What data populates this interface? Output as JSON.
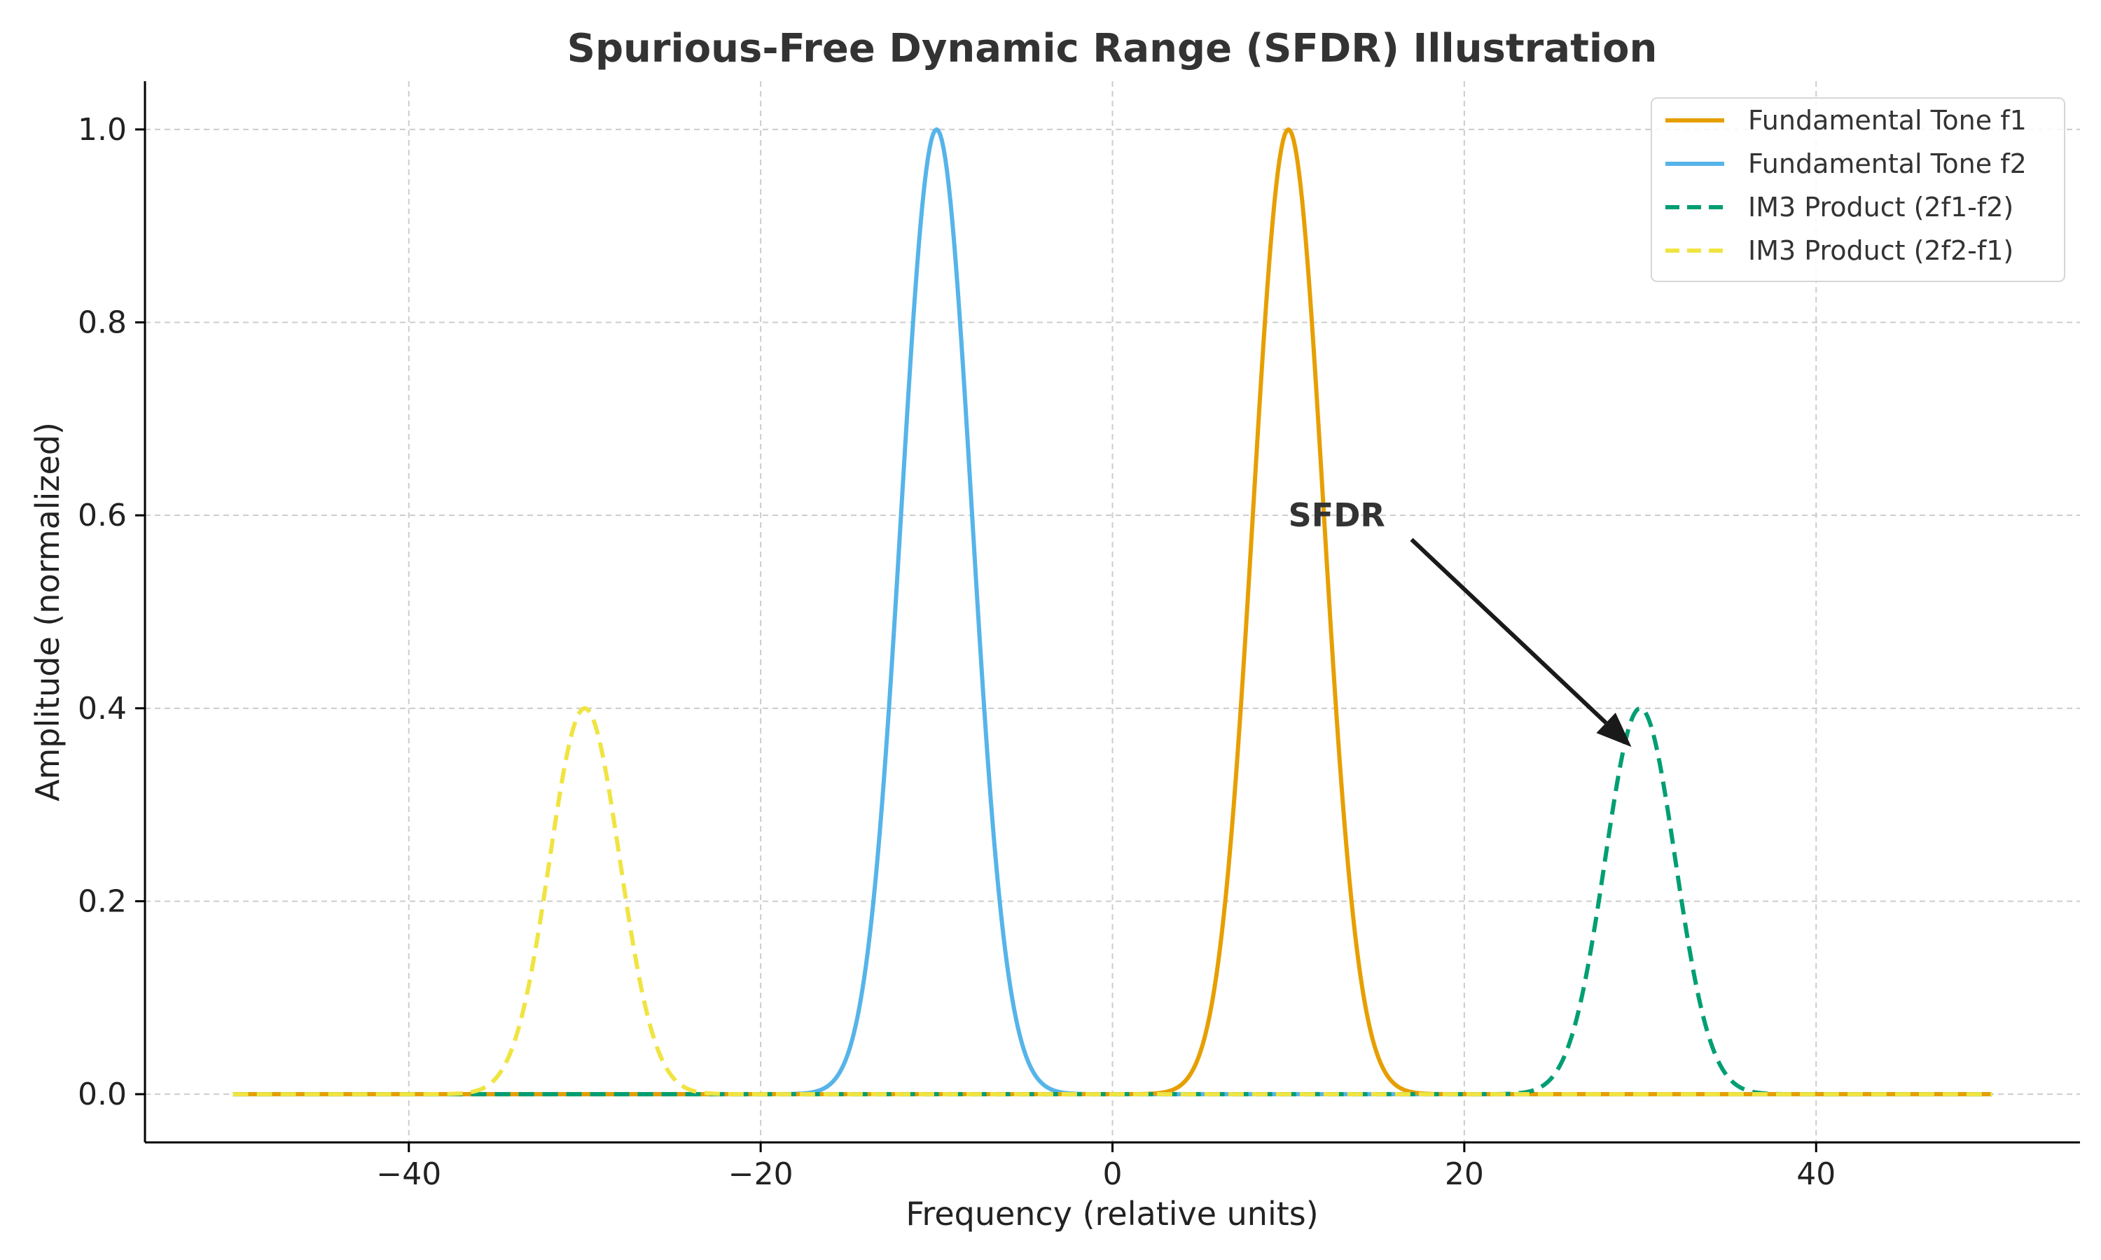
{
  "chart_data": {
    "type": "line",
    "title": "Spurious-Free Dynamic Range (SFDR) Illustration",
    "xlabel": "Frequency (relative units)",
    "ylabel": "Amplitude (normalized)",
    "xlim": [
      -55,
      55
    ],
    "ylim": [
      -0.05,
      1.05
    ],
    "x_range": [
      -50,
      50
    ],
    "xticks": [
      -40,
      -20,
      0,
      20,
      40
    ],
    "xtick_labels": [
      "−40",
      "−20",
      "0",
      "20",
      "40"
    ],
    "yticks": [
      0.0,
      0.2,
      0.4,
      0.6,
      0.8,
      1.0
    ],
    "ytick_labels": [
      "0.0",
      "0.2",
      "0.4",
      "0.6",
      "0.8",
      "1.0"
    ],
    "grid": true,
    "legend_position": "top-right",
    "series": [
      {
        "name": "Fundamental Tone f1",
        "center": 10,
        "amplitude": 1.0,
        "sigma": 2.0,
        "color": "#E69F00",
        "style": "solid"
      },
      {
        "name": "Fundamental Tone f2",
        "center": -10,
        "amplitude": 1.0,
        "sigma": 2.0,
        "color": "#56B4E9",
        "style": "solid"
      },
      {
        "name": "IM3 Product (2f1-f2)",
        "center": 30,
        "amplitude": 0.4,
        "sigma": 2.0,
        "color": "#009E73",
        "style": "dashed"
      },
      {
        "name": "IM3 Product (2f2-f1)",
        "center": -30,
        "amplitude": 0.4,
        "sigma": 2.0,
        "color": "#F0E442",
        "style": "dashed"
      }
    ],
    "annotations": [
      {
        "text": "SFDR",
        "text_x": 10,
        "text_y": 0.6,
        "arrow_from_x": 17,
        "arrow_from_y": 0.575,
        "arrow_to_x": 29.5,
        "arrow_to_y": 0.36
      }
    ]
  }
}
